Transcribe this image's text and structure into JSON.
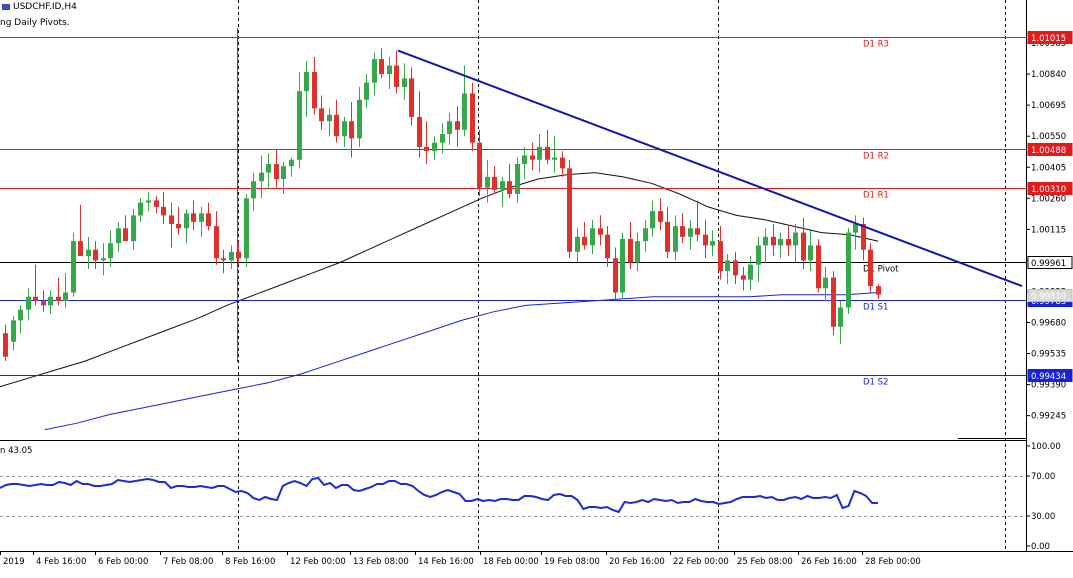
{
  "header": {
    "symbol": "USDCHF.ID,H4",
    "indicator_name": "ng Daily Pivots.",
    "oscillator_value": "n 43.05"
  },
  "colors": {
    "bull": "#35a94a",
    "bear": "#e0302b",
    "pivot_red": "#e21a1a",
    "pivot_blue": "#1a22d6",
    "trendline": "#1414b0",
    "ma_fast": "#111111",
    "ma_slow": "#1a22d6",
    "osc": "#1a2dd0",
    "grid": "#000000",
    "price_tag_text": "#ffffff"
  },
  "chart_data": [
    {
      "type": "candlestick",
      "symbol": "USDCHF.ID",
      "timeframe": "H4",
      "ylim": [
        0.9915,
        1.0113
      ],
      "y_ticks": [
        "1.00985",
        "1.00840",
        "1.00695",
        "1.00550",
        "1.00405",
        "1.00260",
        "1.00115",
        "0.99970",
        "0.99825",
        "0.99680",
        "0.99535",
        "0.99390",
        "0.99245"
      ],
      "x_tick_labels": [
        "2019",
        "4 Feb 16:00",
        "6 Feb 00:00",
        "7 Feb 08:00",
        "8 Feb 16:00",
        "12 Feb 00:00",
        "13 Feb 08:00",
        "14 Feb 16:00",
        "18 Feb 00:00",
        "19 Feb 08:00",
        "20 Feb 16:00",
        "22 Feb 00:00",
        "25 Feb 08:00",
        "26 Feb 16:00",
        "28 Feb 00:00"
      ],
      "pivot_levels": [
        {
          "label": "D1 R3",
          "value": 1.01015,
          "tag": "1.01015",
          "color": "red"
        },
        {
          "label": "D1 R2",
          "value": 1.00488,
          "tag": "1.00488",
          "color": "red"
        },
        {
          "label": "D1 R1",
          "value": 1.0031,
          "tag": "1.00310",
          "color": "red"
        },
        {
          "label": "D1 Pivot",
          "value": 0.99961,
          "tag": "0.99961",
          "color": "black"
        },
        {
          "label": "D1 S1",
          "value": 0.99783,
          "tag": "0.99783",
          "color": "blue"
        },
        {
          "label": "D1 S2",
          "value": 0.99434,
          "tag": "0.99434",
          "color": "blue"
        }
      ],
      "current_price_tag": "0.99810",
      "trendline": {
        "from_price": 1.0095,
        "to_price": 0.9985
      },
      "ma_fast": [
        0.9938,
        0.9942,
        0.9946,
        0.995,
        0.9955,
        0.996,
        0.9965,
        0.997,
        0.9976,
        0.9981,
        0.9986,
        0.9991,
        0.9996,
        1.0002,
        1.0008,
        1.0014,
        1.002,
        1.0026,
        1.0031,
        1.0035,
        1.0037,
        1.0038,
        1.0036,
        1.0033,
        1.0028,
        1.0022,
        1.0018,
        1.0016,
        1.0013,
        1.001,
        1.0009,
        1.0006
      ],
      "ma_slow": [
        0.9918,
        0.9921,
        0.9925,
        0.9928,
        0.9931,
        0.9934,
        0.9937,
        0.994,
        0.9944,
        0.9949,
        0.9954,
        0.9959,
        0.9964,
        0.9969,
        0.9973,
        0.9976,
        0.9977,
        0.9978,
        0.9979,
        0.998,
        0.998,
        0.998,
        0.998,
        0.9981,
        0.9981,
        0.9981,
        0.9982
      ],
      "candles": [
        {
          "o": 0.9963,
          "h": 0.9967,
          "l": 0.995,
          "c": 0.9952
        },
        {
          "o": 0.9959,
          "h": 0.9971,
          "l": 0.9955,
          "c": 0.9969
        },
        {
          "o": 0.9969,
          "h": 0.9976,
          "l": 0.9963,
          "c": 0.9974
        },
        {
          "o": 0.9974,
          "h": 0.9984,
          "l": 0.9969,
          "c": 0.998
        },
        {
          "o": 0.998,
          "h": 0.9995,
          "l": 0.9976,
          "c": 0.9978
        },
        {
          "o": 0.9978,
          "h": 0.9983,
          "l": 0.9973,
          "c": 0.9976
        },
        {
          "o": 0.9976,
          "h": 0.9983,
          "l": 0.9972,
          "c": 0.998
        },
        {
          "o": 0.998,
          "h": 0.9989,
          "l": 0.9976,
          "c": 0.9978
        },
        {
          "o": 0.9978,
          "h": 0.9991,
          "l": 0.9975,
          "c": 0.9982
        },
        {
          "o": 0.9982,
          "h": 1.001,
          "l": 0.998,
          "c": 1.0006
        },
        {
          "o": 1.0006,
          "h": 1.0023,
          "l": 1.0,
          "c": 0.9999
        },
        {
          "o": 0.9999,
          "h": 1.0008,
          "l": 0.9993,
          "c": 1.0002
        },
        {
          "o": 1.0002,
          "h": 1.0006,
          "l": 0.9993,
          "c": 0.9997
        },
        {
          "o": 0.9997,
          "h": 1.0005,
          "l": 0.999,
          "c": 0.9998
        },
        {
          "o": 0.9998,
          "h": 1.0011,
          "l": 0.9994,
          "c": 1.0005
        },
        {
          "o": 1.0005,
          "h": 1.0015,
          "l": 1.0001,
          "c": 1.0012
        },
        {
          "o": 1.0012,
          "h": 1.0018,
          "l": 1.0006,
          "c": 1.0006
        },
        {
          "o": 1.0006,
          "h": 1.0021,
          "l": 1.0002,
          "c": 1.0018
        },
        {
          "o": 1.0018,
          "h": 1.0026,
          "l": 1.0015,
          "c": 1.0024
        },
        {
          "o": 1.0024,
          "h": 1.0029,
          "l": 1.002,
          "c": 1.0025
        },
        {
          "o": 1.0025,
          "h": 1.0027,
          "l": 1.0019,
          "c": 1.0022
        },
        {
          "o": 1.0022,
          "h": 1.0029,
          "l": 1.0014,
          "c": 1.0018
        },
        {
          "o": 1.0018,
          "h": 1.0024,
          "l": 1.0003,
          "c": 1.0014
        },
        {
          "o": 1.0014,
          "h": 1.0022,
          "l": 1.0009,
          "c": 1.0012
        },
        {
          "o": 1.0012,
          "h": 1.0021,
          "l": 1.0005,
          "c": 1.0019
        },
        {
          "o": 1.0019,
          "h": 1.0025,
          "l": 1.0011,
          "c": 1.0015
        },
        {
          "o": 1.0015,
          "h": 1.0022,
          "l": 1.0008,
          "c": 1.0019
        },
        {
          "o": 1.0019,
          "h": 1.0024,
          "l": 1.0011,
          "c": 1.0013
        },
        {
          "o": 1.0013,
          "h": 1.002,
          "l": 0.9995,
          "c": 0.9998
        },
        {
          "o": 0.9998,
          "h": 1.0002,
          "l": 0.9991,
          "c": 0.9997
        },
        {
          "o": 0.9997,
          "h": 1.0004,
          "l": 0.9993,
          "c": 1.0001
        },
        {
          "o": 1.0001,
          "h": 1.0006,
          "l": 0.9995,
          "c": 0.9998
        },
        {
          "o": 0.9998,
          "h": 1.0028,
          "l": 0.9994,
          "c": 1.0026
        },
        {
          "o": 1.0026,
          "h": 1.0038,
          "l": 1.002,
          "c": 1.0034
        },
        {
          "o": 1.0034,
          "h": 1.0046,
          "l": 1.0026,
          "c": 1.0038
        },
        {
          "o": 1.0038,
          "h": 1.0047,
          "l": 1.003,
          "c": 1.0042
        },
        {
          "o": 1.0042,
          "h": 1.0049,
          "l": 1.0031,
          "c": 1.0035
        },
        {
          "o": 1.0035,
          "h": 1.0043,
          "l": 1.0028,
          "c": 1.0041
        },
        {
          "o": 1.0041,
          "h": 1.0045,
          "l": 1.0036,
          "c": 1.0044
        },
        {
          "o": 1.0044,
          "h": 1.0085,
          "l": 1.004,
          "c": 1.0076
        },
        {
          "o": 1.0076,
          "h": 1.009,
          "l": 1.0064,
          "c": 1.0085
        },
        {
          "o": 1.0085,
          "h": 1.0092,
          "l": 1.0065,
          "c": 1.0068
        },
        {
          "o": 1.0068,
          "h": 1.0074,
          "l": 1.0058,
          "c": 1.0062
        },
        {
          "o": 1.0062,
          "h": 1.0068,
          "l": 1.0055,
          "c": 1.0065
        },
        {
          "o": 1.0065,
          "h": 1.0072,
          "l": 1.0052,
          "c": 1.0055
        },
        {
          "o": 1.0055,
          "h": 1.0064,
          "l": 1.005,
          "c": 1.0062
        },
        {
          "o": 1.0062,
          "h": 1.0071,
          "l": 1.0045,
          "c": 1.0054
        },
        {
          "o": 1.0054,
          "h": 1.0078,
          "l": 1.005,
          "c": 1.0072
        },
        {
          "o": 1.0072,
          "h": 1.0084,
          "l": 1.0068,
          "c": 1.008
        },
        {
          "o": 1.008,
          "h": 1.0094,
          "l": 1.0074,
          "c": 1.0091
        },
        {
          "o": 1.0091,
          "h": 1.0096,
          "l": 1.0082,
          "c": 1.0084
        },
        {
          "o": 1.0084,
          "h": 1.0092,
          "l": 1.0077,
          "c": 1.0088
        },
        {
          "o": 1.0088,
          "h": 1.0095,
          "l": 1.0075,
          "c": 1.0078
        },
        {
          "o": 1.0078,
          "h": 1.0089,
          "l": 1.0072,
          "c": 1.0082
        },
        {
          "o": 1.0082,
          "h": 1.0087,
          "l": 1.006,
          "c": 1.0064
        },
        {
          "o": 1.0064,
          "h": 1.0076,
          "l": 1.0045,
          "c": 1.005
        },
        {
          "o": 1.005,
          "h": 1.0062,
          "l": 1.0042,
          "c": 1.0048
        },
        {
          "o": 1.0048,
          "h": 1.0055,
          "l": 1.0044,
          "c": 1.0052
        },
        {
          "o": 1.0052,
          "h": 1.0061,
          "l": 1.0047,
          "c": 1.0056
        },
        {
          "o": 1.0056,
          "h": 1.0066,
          "l": 1.0051,
          "c": 1.0062
        },
        {
          "o": 1.0062,
          "h": 1.0069,
          "l": 1.005,
          "c": 1.0058
        },
        {
          "o": 1.0058,
          "h": 1.0088,
          "l": 1.0055,
          "c": 1.0075
        },
        {
          "o": 1.0075,
          "h": 1.008,
          "l": 1.0048,
          "c": 1.0052
        },
        {
          "o": 1.0052,
          "h": 1.0058,
          "l": 1.0027,
          "c": 1.0031
        },
        {
          "o": 1.0031,
          "h": 1.0044,
          "l": 1.0024,
          "c": 1.0036
        },
        {
          "o": 1.0036,
          "h": 1.0041,
          "l": 1.0028,
          "c": 1.003
        },
        {
          "o": 1.003,
          "h": 1.0036,
          "l": 1.0022,
          "c": 1.0034
        },
        {
          "o": 1.0034,
          "h": 1.0042,
          "l": 1.0026,
          "c": 1.0028
        },
        {
          "o": 1.0028,
          "h": 1.0045,
          "l": 1.0024,
          "c": 1.0042
        },
        {
          "o": 1.0042,
          "h": 1.005,
          "l": 1.0035,
          "c": 1.0046
        },
        {
          "o": 1.0046,
          "h": 1.0052,
          "l": 1.0039,
          "c": 1.0044
        },
        {
          "o": 1.0044,
          "h": 1.0056,
          "l": 1.0038,
          "c": 1.005
        },
        {
          "o": 1.005,
          "h": 1.0058,
          "l": 1.0042,
          "c": 1.0044
        },
        {
          "o": 1.0044,
          "h": 1.0055,
          "l": 1.0038,
          "c": 1.0045
        },
        {
          "o": 1.0045,
          "h": 1.0048,
          "l": 1.0036,
          "c": 1.004
        },
        {
          "o": 1.004,
          "h": 1.0044,
          "l": 0.9998,
          "c": 1.0001
        },
        {
          "o": 1.0001,
          "h": 1.0012,
          "l": 0.9996,
          "c": 1.0008
        },
        {
          "o": 1.0008,
          "h": 1.0015,
          "l": 1.0002,
          "c": 1.0004
        },
        {
          "o": 1.0004,
          "h": 1.0016,
          "l": 1.0,
          "c": 1.0012
        },
        {
          "o": 1.0012,
          "h": 1.0018,
          "l": 1.0004,
          "c": 1.0009
        },
        {
          "o": 1.0009,
          "h": 1.0013,
          "l": 0.9994,
          "c": 0.9998
        },
        {
          "o": 0.9998,
          "h": 1.0003,
          "l": 0.9979,
          "c": 0.9982
        },
        {
          "o": 0.9982,
          "h": 1.001,
          "l": 0.9979,
          "c": 1.0007
        },
        {
          "o": 1.0007,
          "h": 1.0015,
          "l": 0.9993,
          "c": 0.9996
        },
        {
          "o": 0.9996,
          "h": 1.001,
          "l": 0.9992,
          "c": 1.0006
        },
        {
          "o": 1.0006,
          "h": 1.0016,
          "l": 1.0001,
          "c": 1.0012
        },
        {
          "o": 1.0012,
          "h": 1.0025,
          "l": 1.0008,
          "c": 1.002
        },
        {
          "o": 1.002,
          "h": 1.0026,
          "l": 1.0011,
          "c": 1.0015
        },
        {
          "o": 1.0015,
          "h": 1.0022,
          "l": 0.9998,
          "c": 1.0001
        },
        {
          "o": 1.0001,
          "h": 1.0018,
          "l": 0.9997,
          "c": 1.0013
        },
        {
          "o": 1.0013,
          "h": 1.0019,
          "l": 1.0005,
          "c": 1.0008
        },
        {
          "o": 1.0008,
          "h": 1.0016,
          "l": 1.0002,
          "c": 1.0012
        },
        {
          "o": 1.0012,
          "h": 1.0025,
          "l": 1.0006,
          "c": 1.0009
        },
        {
          "o": 1.0009,
          "h": 1.0016,
          "l": 0.9998,
          "c": 1.0004
        },
        {
          "o": 1.0004,
          "h": 1.0011,
          "l": 0.9999,
          "c": 1.0006
        },
        {
          "o": 1.0006,
          "h": 1.0013,
          "l": 0.9988,
          "c": 0.9992
        },
        {
          "o": 0.9992,
          "h": 1.0,
          "l": 0.9986,
          "c": 0.9997
        },
        {
          "o": 0.9997,
          "h": 1.0001,
          "l": 0.9986,
          "c": 0.999
        },
        {
          "o": 0.999,
          "h": 0.9994,
          "l": 0.9983,
          "c": 0.9988
        },
        {
          "o": 0.9988,
          "h": 0.9999,
          "l": 0.9983,
          "c": 0.9995
        },
        {
          "o": 0.9995,
          "h": 1.0008,
          "l": 0.9987,
          "c": 1.0004
        },
        {
          "o": 1.0004,
          "h": 1.0012,
          "l": 0.9996,
          "c": 1.0008
        },
        {
          "o": 1.0008,
          "h": 1.0014,
          "l": 0.9999,
          "c": 1.0004
        },
        {
          "o": 1.0004,
          "h": 1.001,
          "l": 0.9998,
          "c": 1.0007
        },
        {
          "o": 1.0007,
          "h": 1.0013,
          "l": 0.9999,
          "c": 1.0004
        },
        {
          "o": 1.0004,
          "h": 1.0014,
          "l": 0.9996,
          "c": 1.001
        },
        {
          "o": 1.001,
          "h": 1.0017,
          "l": 0.9993,
          "c": 0.9997
        },
        {
          "o": 0.9997,
          "h": 1.0011,
          "l": 0.9992,
          "c": 1.0004
        },
        {
          "o": 1.0004,
          "h": 1.0007,
          "l": 0.9982,
          "c": 0.9984
        },
        {
          "o": 0.9984,
          "h": 0.9994,
          "l": 0.9978,
          "c": 0.9989
        },
        {
          "o": 0.9989,
          "h": 0.9992,
          "l": 0.9962,
          "c": 0.9966
        },
        {
          "o": 0.9966,
          "h": 0.9978,
          "l": 0.9958,
          "c": 0.9975
        },
        {
          "o": 0.9975,
          "h": 1.0012,
          "l": 0.9972,
          "c": 1.001
        },
        {
          "o": 1.001,
          "h": 1.0018,
          "l": 1.0002,
          "c": 1.0014
        },
        {
          "o": 1.0014,
          "h": 1.0017,
          "l": 0.9997,
          "c": 1.0002
        },
        {
          "o": 1.0002,
          "h": 1.0005,
          "l": 0.9982,
          "c": 0.9985
        },
        {
          "o": 0.9985,
          "h": 0.9986,
          "l": 0.9979,
          "c": 0.9981
        }
      ]
    },
    {
      "type": "line",
      "role": "oscillator",
      "ylim": [
        -5,
        105
      ],
      "y_ticks": [
        "100.00",
        "70.00",
        "30.00",
        "0.00"
      ],
      "levels": [
        70,
        30
      ],
      "values": [
        58,
        61,
        62,
        62,
        61,
        60,
        61,
        62,
        61,
        61,
        64,
        63,
        61,
        65,
        62,
        62,
        60,
        60,
        61,
        62,
        66,
        65,
        64,
        65,
        66,
        67,
        66,
        64,
        64,
        58,
        60,
        60,
        59,
        59,
        60,
        59,
        58,
        60,
        60,
        57,
        54,
        55,
        53,
        48,
        46,
        49,
        47,
        46,
        60,
        63,
        65,
        63,
        60,
        67,
        68,
        61,
        63,
        58,
        61,
        61,
        56,
        55,
        57,
        59,
        62,
        62,
        65,
        65,
        62,
        62,
        60,
        55,
        51,
        49,
        51,
        54,
        56,
        54,
        52,
        45,
        45,
        47,
        45,
        46,
        45,
        47,
        47,
        46,
        46,
        50,
        50,
        49,
        47,
        46,
        51,
        52,
        50,
        50,
        46,
        37,
        39,
        39,
        38,
        39,
        36,
        34,
        44,
        43,
        44,
        46,
        44,
        47,
        46,
        45,
        46,
        43,
        44,
        44,
        47,
        45,
        44,
        44,
        42,
        43,
        44,
        47,
        49,
        49,
        49,
        50,
        48,
        49,
        46,
        46,
        48,
        49,
        47,
        50,
        48,
        48,
        49,
        48,
        51,
        38,
        40,
        55,
        53,
        50,
        43,
        43
      ]
    }
  ]
}
